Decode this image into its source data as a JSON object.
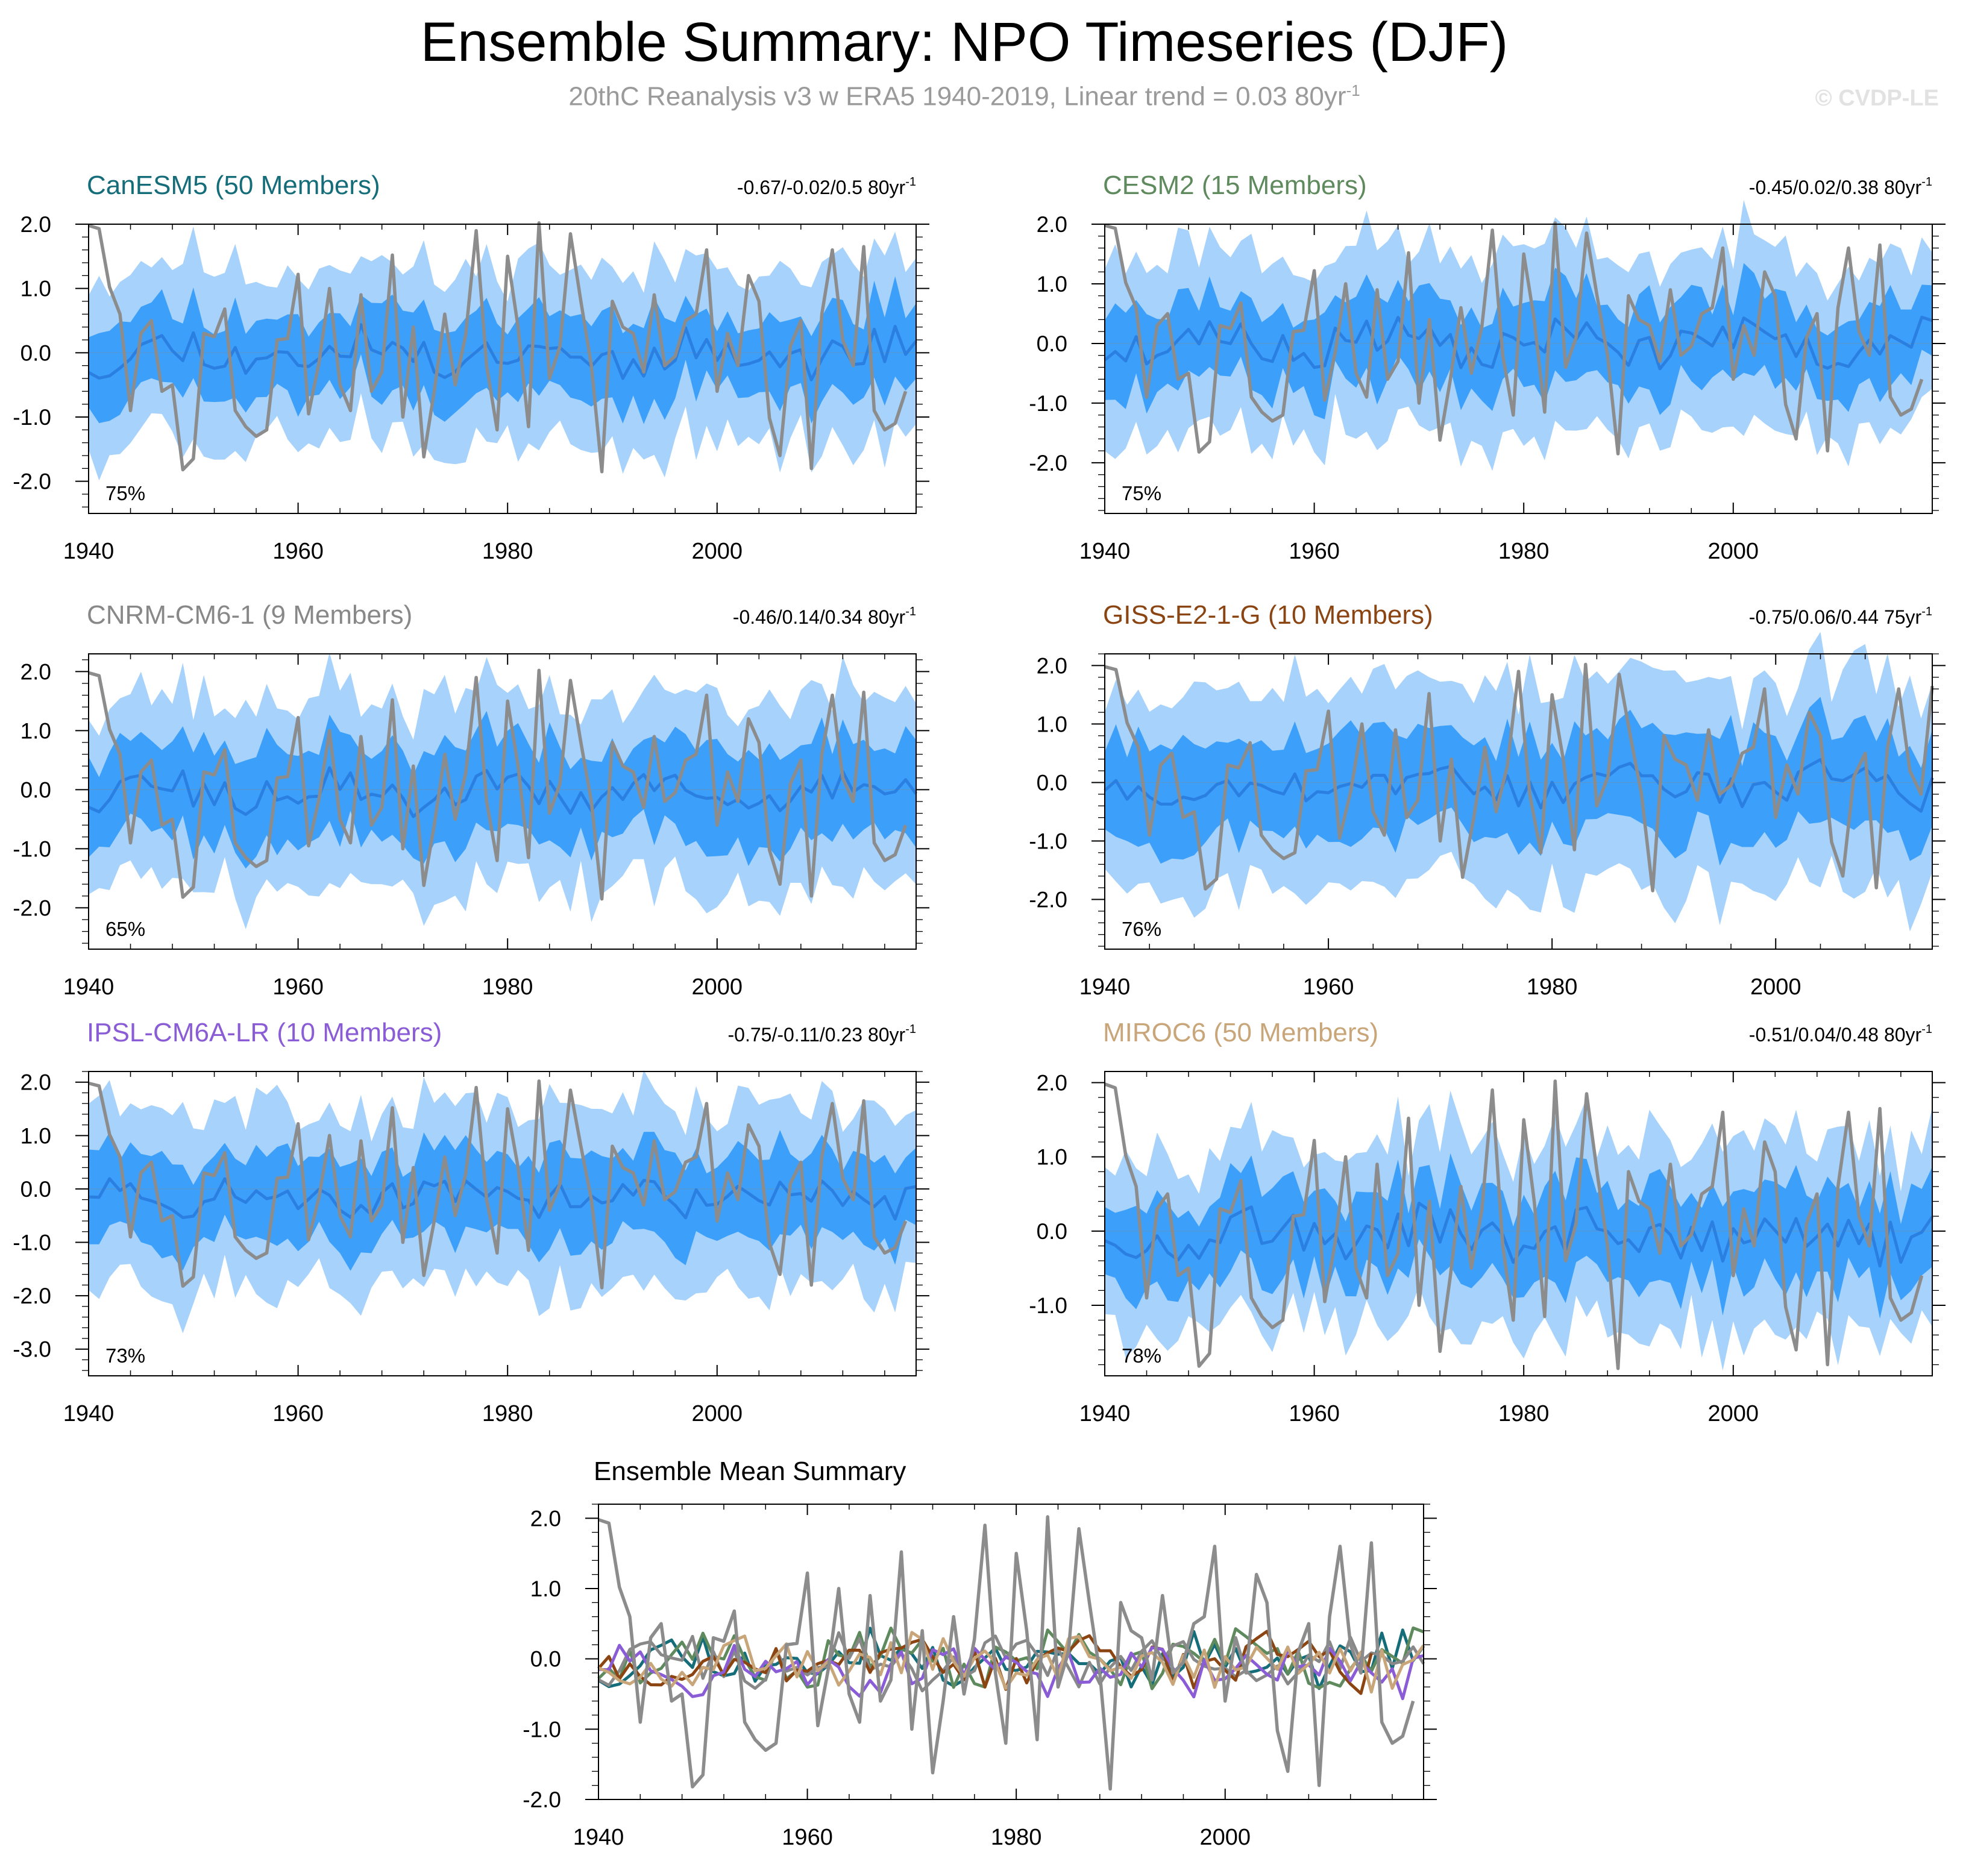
{
  "header": {
    "title": "Ensemble Summary: NPO Timeseries (DJF)",
    "subtitle_main": "20thC Reanalysis v3 w ERA5 1940-2019, Linear trend = 0.03 80yr",
    "subtitle_sup": "-1",
    "watermark": "© CVDP-LE"
  },
  "colors": {
    "band_outer": "#a6d2fb",
    "band_inner": "#3ca0fa",
    "ens_mean": "#2a7fe0",
    "obs": "#8c8c8c"
  },
  "chart_data": {
    "observed": {
      "name": "20thC Reanalysis v3 w ERA5",
      "x_start": 1940,
      "values": [
        1.98,
        1.93,
        1.02,
        0.6,
        -0.9,
        0.3,
        0.5,
        -0.6,
        -0.5,
        -1.82,
        -1.65,
        0.3,
        0.25,
        0.68,
        -0.9,
        -1.15,
        -1.3,
        -1.2,
        0.2,
        0.22,
        1.22,
        -0.95,
        -0.15,
        1.0,
        -0.5,
        -0.9,
        0.9,
        -0.6,
        -0.3,
        1.52,
        -1.0,
        0.4,
        -1.62,
        -0.6,
        0.6,
        -0.5,
        0.28,
        1.9,
        -0.2,
        -1.2,
        1.5,
        0.4,
        -1.15,
        2.02,
        -0.4,
        0.1,
        1.85,
        0.8,
        -0.2,
        -1.85,
        0.8,
        0.4,
        0.3,
        -0.3,
        0.9,
        -0.2,
        -0.05,
        0.5,
        0.6,
        1.6,
        -0.6,
        0.3,
        -0.2,
        1.2,
        0.8,
        -1.02,
        -1.6,
        0.1,
        0.5,
        -1.8,
        0.6,
        1.6,
        0.2,
        -0.2,
        1.65,
        -0.9,
        -1.2,
        -1.1,
        -0.6
      ],
      "trend_label": "Linear trend = 0.03 80yr-1"
    },
    "panels": [
      {
        "id": "canesm5",
        "type": "area",
        "title": "CanESM5 (50 Members)",
        "title_color": "#166d7a",
        "trend_text": "-0.67/-0.02/0.5 80yr",
        "trend_sup": "-1",
        "pct_label": "75%",
        "x_start": 1940,
        "x_end": 2019,
        "xlim": [
          1940,
          2019
        ],
        "ylim": [
          -2.5,
          2.0
        ],
        "yticks": [
          2.0,
          1.0,
          0.0,
          -1.0,
          -2.0
        ],
        "ytick_labels": [
          "2.0",
          "1.0",
          "0.0",
          "-1.0",
          "-2.0"
        ],
        "xticks": [
          1940,
          1960,
          1980,
          2000
        ],
        "amp": 1.0,
        "offset": 0.0,
        "seed": 11,
        "outer_scale": 1.95,
        "inner_scale": 1.0
      },
      {
        "id": "cesm2",
        "type": "area",
        "title": "CESM2 (15 Members)",
        "title_color": "#5e8a5e",
        "trend_text": "-0.45/0.02/0.38 80yr",
        "trend_sup": "-1",
        "pct_label": "75%",
        "x_start": 1940,
        "x_end": 2019,
        "xlim": [
          1940,
          2019
        ],
        "ylim": [
          -2.85,
          2.0
        ],
        "yticks": [
          2.0,
          1.0,
          0.0,
          -1.0,
          -2.0
        ],
        "ytick_labels": [
          "2.0",
          "1.0",
          "0.0",
          "-1.0",
          "-2.0"
        ],
        "xticks": [
          1940,
          1960,
          1980,
          2000
        ],
        "amp": 1.05,
        "offset": 0.0,
        "seed": 23,
        "outer_scale": 2.1,
        "inner_scale": 1.1
      },
      {
        "id": "cnrm",
        "type": "area",
        "title": "CNRM-CM6-1 (9 Members)",
        "title_color": "#888888",
        "trend_text": "-0.46/0.14/0.34 80yr",
        "trend_sup": "-1",
        "pct_label": "65%",
        "x_start": 1940,
        "x_end": 2019,
        "xlim": [
          1940,
          2019
        ],
        "ylim": [
          -2.7,
          2.3
        ],
        "yticks": [
          2.0,
          1.0,
          0.0,
          -1.0,
          -2.0
        ],
        "ytick_labels": [
          "2.0",
          "1.0",
          "0.0",
          "-1.0",
          "-2.0"
        ],
        "xticks": [
          1940,
          1960,
          1980,
          2000
        ],
        "amp": 1.1,
        "offset": -0.05,
        "seed": 37,
        "outer_scale": 2.0,
        "inner_scale": 1.15
      },
      {
        "id": "giss",
        "type": "area",
        "title": "GISS-E2-1-G (10 Members)",
        "title_color": "#8b4513",
        "trend_text": "-0.75/0.06/0.44 75yr",
        "trend_sup": "-1",
        "pct_label": "76%",
        "x_start": 1940,
        "x_end": 2014,
        "xlim": [
          1940,
          2014
        ],
        "ylim": [
          -2.85,
          2.2
        ],
        "yticks": [
          2.0,
          1.0,
          0.0,
          -1.0,
          -2.0
        ],
        "ytick_labels": [
          "2.0",
          "1.0",
          "0.0",
          "-1.0",
          "-2.0"
        ],
        "xticks": [
          1940,
          1960,
          1980,
          2000
        ],
        "amp": 1.15,
        "offset": -0.05,
        "seed": 53,
        "outer_scale": 2.15,
        "inner_scale": 1.2
      },
      {
        "id": "ipsl",
        "type": "area",
        "title": "IPSL-CM6A-LR (10 Members)",
        "title_color": "#8a5cd6",
        "trend_text": "-0.75/-0.11/0.23 80yr",
        "trend_sup": "-1",
        "pct_label": "73%",
        "x_start": 1940,
        "x_end": 2019,
        "xlim": [
          1940,
          2019
        ],
        "ylim": [
          -3.5,
          2.2
        ],
        "yticks": [
          2.0,
          1.0,
          0.0,
          -1.0,
          -2.0,
          -3.0
        ],
        "ytick_labels": [
          "2.0",
          "1.0",
          "0.0",
          "-1.0",
          "-2.0",
          "-3.0"
        ],
        "xticks": [
          1940,
          1960,
          1980,
          2000
        ],
        "amp": 1.1,
        "offset": -0.15,
        "seed": 71,
        "outer_scale": 2.2,
        "inner_scale": 1.15
      },
      {
        "id": "miroc6",
        "type": "area",
        "title": "MIROC6 (50 Members)",
        "title_color": "#c9a67a",
        "trend_text": "-0.51/0.04/0.48 80yr",
        "trend_sup": "-1",
        "pct_label": "78%",
        "x_start": 1940,
        "x_end": 2019,
        "xlim": [
          1940,
          2019
        ],
        "ylim": [
          -1.95,
          2.15
        ],
        "yticks": [
          2.0,
          1.0,
          0.0,
          -1.0
        ],
        "ytick_labels": [
          "2.0",
          "1.0",
          "0.0",
          "-1.0"
        ],
        "xticks": [
          1940,
          1960,
          1980,
          2000
        ],
        "amp": 0.95,
        "offset": -0.05,
        "seed": 97,
        "outer_scale": 1.85,
        "inner_scale": 1.0
      }
    ],
    "summary": {
      "type": "line",
      "title": "Ensemble Mean Summary",
      "xlim": [
        1940,
        2019
      ],
      "ylim": [
        -2.0,
        2.2
      ],
      "yticks": [
        2.0,
        1.0,
        0.0,
        -1.0,
        -2.0
      ],
      "ytick_labels": [
        "2.0",
        "1.0",
        "0.0",
        "-1.0",
        "-2.0"
      ],
      "xticks": [
        1940,
        1960,
        1980,
        2000
      ],
      "series_colors": [
        "#166d7a",
        "#5e8a5e",
        "#888888",
        "#8b4513",
        "#8a5cd6",
        "#c9a67a"
      ]
    }
  }
}
